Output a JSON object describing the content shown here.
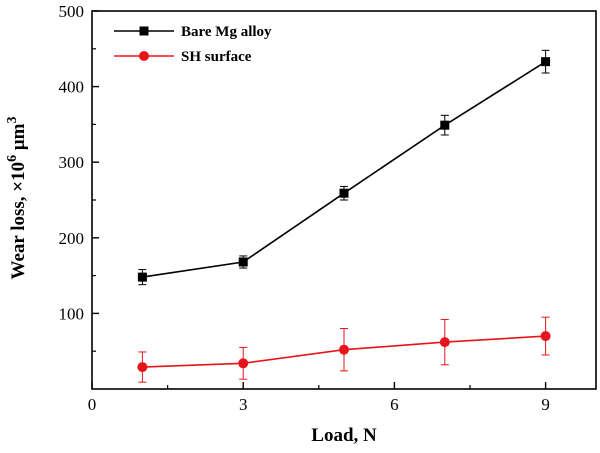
{
  "chart_data": {
    "type": "line",
    "title": "",
    "xlabel": "Load, N",
    "ylabel_prefix": "Wear loss, ×10",
    "ylabel_exp": "6",
    "ylabel_unit": " μm",
    "ylabel_unit_exp": "3",
    "xlim": [
      0,
      10
    ],
    "ylim": [
      0,
      500
    ],
    "x_ticks": [
      0,
      3,
      6,
      9
    ],
    "y_ticks": [
      100,
      200,
      300,
      400,
      500
    ],
    "legend_position": "top-left",
    "grid": false,
    "series": [
      {
        "name": "Bare Mg alloy",
        "color": "#000000",
        "marker": "square",
        "x": [
          1,
          3,
          5,
          7,
          9
        ],
        "y": [
          148,
          168,
          259,
          349,
          433
        ],
        "err": [
          10,
          8,
          9,
          13,
          15
        ]
      },
      {
        "name": "SH surface",
        "color": "#e8141b",
        "marker": "circle",
        "x": [
          1,
          3,
          5,
          7,
          9
        ],
        "y": [
          29,
          34,
          52,
          62,
          70
        ],
        "err": [
          20,
          21,
          28,
          30,
          25
        ]
      }
    ]
  }
}
